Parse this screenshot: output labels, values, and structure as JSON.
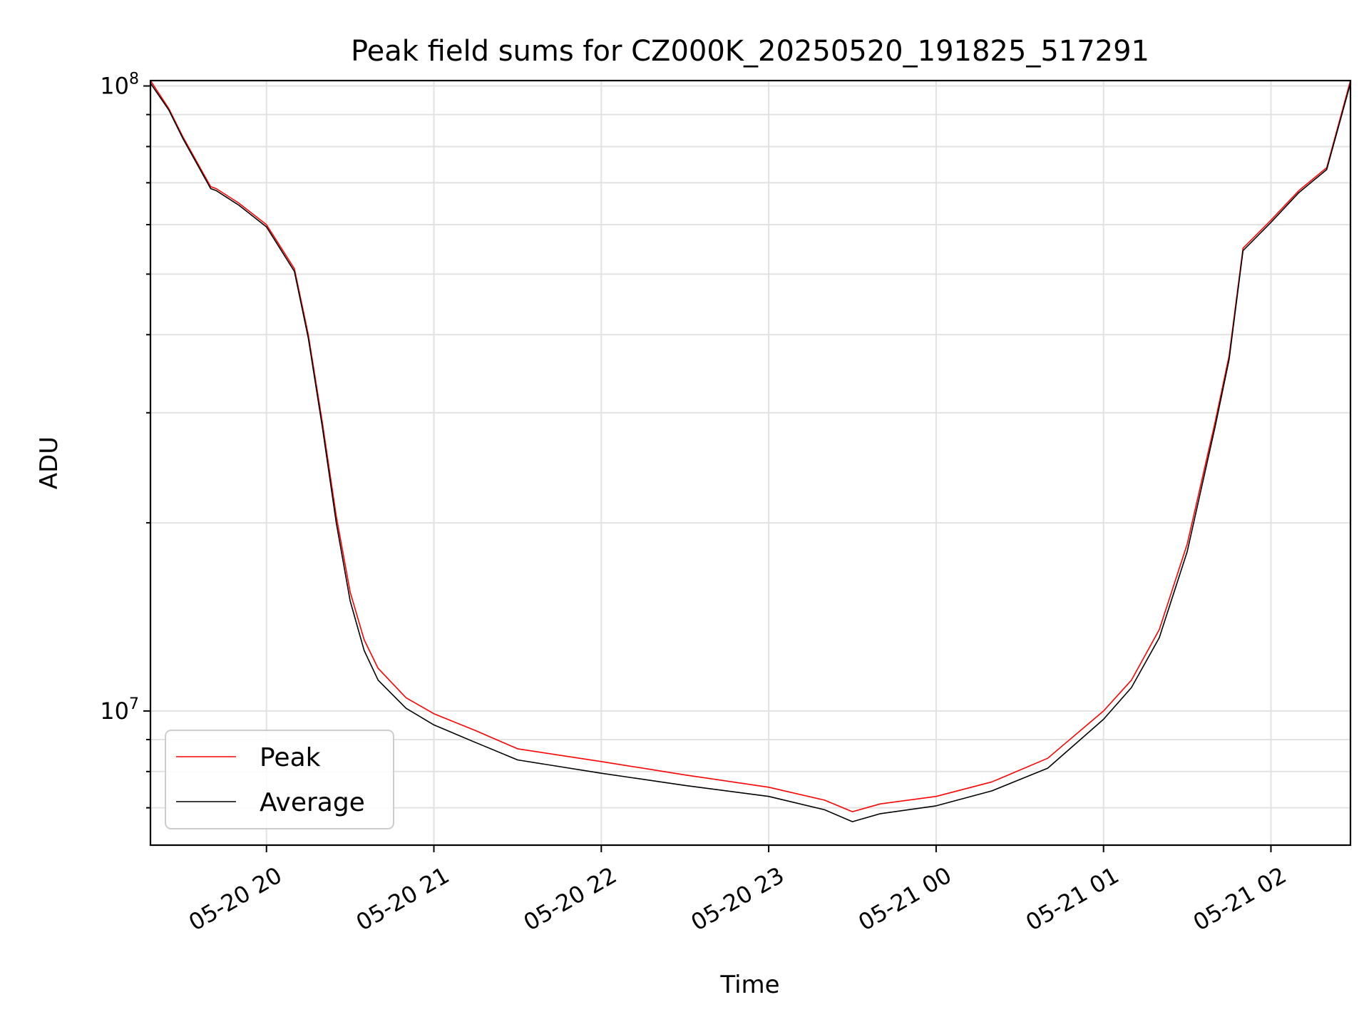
{
  "chart_data": {
    "type": "line",
    "title": "Peak field sums for CZ000K_20250520_191825_517291",
    "xlabel": "Time",
    "ylabel": "ADU",
    "yscale": "log",
    "ylim": [
      6100000,
      102000000
    ],
    "xlim": [
      "2025-05-20 19:18:25",
      "2025-05-21 02:28:30"
    ],
    "x_ticks": [
      {
        "t": "2025-05-20 20:00",
        "label": "05-20 20"
      },
      {
        "t": "2025-05-20 21:00",
        "label": "05-20 21"
      },
      {
        "t": "2025-05-20 22:00",
        "label": "05-20 22"
      },
      {
        "t": "2025-05-20 23:00",
        "label": "05-20 23"
      },
      {
        "t": "2025-05-21 00:00",
        "label": "05-21 00"
      },
      {
        "t": "2025-05-21 01:00",
        "label": "05-21 01"
      },
      {
        "t": "2025-05-21 02:00",
        "label": "05-21 02"
      }
    ],
    "y_ticks": [
      {
        "value": 10000000,
        "base": "10",
        "exp": "7"
      },
      {
        "value": 100000000,
        "base": "10",
        "exp": "8"
      }
    ],
    "grid": true,
    "legend_position": "lower-left",
    "series": [
      {
        "name": "Peak",
        "color": "#ff0000",
        "x": [
          "2025-05-20 19:18:25",
          "2025-05-20 19:25",
          "2025-05-20 19:30",
          "2025-05-20 19:40",
          "2025-05-20 19:42",
          "2025-05-20 19:50",
          "2025-05-20 20:00",
          "2025-05-20 20:10",
          "2025-05-20 20:15",
          "2025-05-20 20:20",
          "2025-05-20 20:25",
          "2025-05-20 20:30",
          "2025-05-20 20:35",
          "2025-05-20 20:40",
          "2025-05-20 20:50",
          "2025-05-20 21:00",
          "2025-05-20 21:15",
          "2025-05-20 21:30",
          "2025-05-20 22:00",
          "2025-05-20 22:30",
          "2025-05-20 23:00",
          "2025-05-20 23:20",
          "2025-05-20 23:30",
          "2025-05-20 23:40",
          "2025-05-21 00:00",
          "2025-05-21 00:20",
          "2025-05-21 00:40",
          "2025-05-21 01:00",
          "2025-05-21 01:10",
          "2025-05-21 01:20",
          "2025-05-21 01:30",
          "2025-05-21 01:40",
          "2025-05-21 01:45",
          "2025-05-21 01:50",
          "2025-05-21 02:00",
          "2025-05-21 02:10",
          "2025-05-21 02:20",
          "2025-05-21 02:28:30"
        ],
        "values": [
          102000000,
          92000000,
          83000000,
          69000000,
          68500000,
          65000000,
          60000000,
          51000000,
          40000000,
          29000000,
          20500000,
          15500000,
          13000000,
          11700000,
          10500000,
          9900000,
          9300000,
          8700000,
          8300000,
          7900000,
          7550000,
          7200000,
          6900000,
          7100000,
          7300000,
          7700000,
          8400000,
          10000000,
          11200000,
          13500000,
          18500000,
          29000000,
          37000000,
          55000000,
          61000000,
          68000000,
          74000000,
          102000000
        ]
      },
      {
        "name": "Average",
        "color": "#000000",
        "x": [
          "2025-05-20 19:18:25",
          "2025-05-20 19:25",
          "2025-05-20 19:30",
          "2025-05-20 19:40",
          "2025-05-20 19:42",
          "2025-05-20 19:50",
          "2025-05-20 20:00",
          "2025-05-20 20:10",
          "2025-05-20 20:15",
          "2025-05-20 20:20",
          "2025-05-20 20:25",
          "2025-05-20 20:30",
          "2025-05-20 20:35",
          "2025-05-20 20:40",
          "2025-05-20 20:50",
          "2025-05-20 21:00",
          "2025-05-20 21:15",
          "2025-05-20 21:30",
          "2025-05-20 22:00",
          "2025-05-20 22:30",
          "2025-05-20 23:00",
          "2025-05-20 23:20",
          "2025-05-20 23:30",
          "2025-05-20 23:40",
          "2025-05-21 00:00",
          "2025-05-21 00:20",
          "2025-05-21 00:40",
          "2025-05-21 01:00",
          "2025-05-21 01:10",
          "2025-05-21 01:20",
          "2025-05-21 01:30",
          "2025-05-21 01:40",
          "2025-05-21 01:45",
          "2025-05-21 01:50",
          "2025-05-21 02:00",
          "2025-05-21 02:10",
          "2025-05-21 02:20",
          "2025-05-21 02:28:30"
        ],
        "values": [
          101000000,
          91500000,
          82500000,
          68500000,
          68000000,
          64500000,
          59500000,
          50500000,
          39500000,
          28500000,
          20000000,
          15000000,
          12500000,
          11200000,
          10100000,
          9500000,
          8900000,
          8350000,
          7950000,
          7600000,
          7300000,
          6950000,
          6650000,
          6850000,
          7050000,
          7450000,
          8100000,
          9700000,
          10900000,
          13100000,
          18000000,
          28500000,
          36500000,
          54500000,
          60500000,
          67500000,
          73500000,
          101000000
        ]
      }
    ]
  }
}
